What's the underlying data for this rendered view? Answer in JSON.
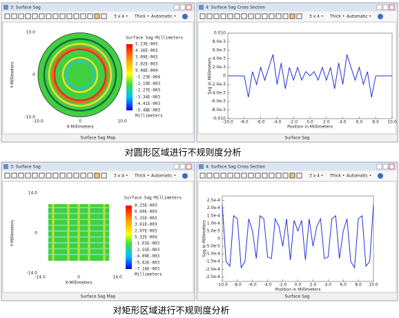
{
  "windows": [
    {
      "title": "3: Surface Sag",
      "toolbar": [
        "3 x 4 •",
        "Thick •",
        "Automatic •"
      ],
      "footer": "Surface Sag Map"
    },
    {
      "title": "4: Surface Sag Cross Section",
      "toolbar": [
        "3 x 4 •",
        "Thick •",
        "Automatic •"
      ],
      "footer": "Surface Sag"
    },
    {
      "title": "3: Surface Sag",
      "toolbar": [
        "3 x 4 •",
        "Thick •",
        "Automatic •"
      ],
      "footer": "Surface Sag Map"
    },
    {
      "title": "4: Surface Sag Cross Section",
      "toolbar": [
        "3 x 4 •",
        "Thick •",
        "Automatic •"
      ],
      "footer": "Surface Sag"
    }
  ],
  "maps": [
    {
      "title": "Surface Sag-Millimeters",
      "legend": [
        "5.23E-003",
        "4.16E-003",
        "3.09E-003",
        "2.02E-003",
        "9.48E-004",
        "-1.23E-004",
        "-1.19E-003",
        "-2.27E-003",
        "-3.34E-003",
        "-4.41E-003",
        "-5.48E-003"
      ],
      "unit": "Millimeters",
      "ylabel": "Y-Millimeters",
      "xlabel": "X-Millimeters",
      "yticks": [
        "10.0",
        "0",
        "-10.0"
      ],
      "xticks": [
        "-10.0",
        "0",
        "10.0"
      ]
    },
    {
      "title": "Surface Sag-Millimeters",
      "legend": [
        "8.23E-003",
        "6.69E-003",
        "5.15E-003",
        "3.61E-003",
        "2.07E-003",
        "5.32E-004",
        "-1.01E-003",
        "-2.55E-003",
        "-4.09E-003",
        "-5.62E-003",
        "-7.16E-003"
      ],
      "unit": "Millimeters",
      "ylabel": "Y-Millimeters",
      "xlabel": "X-Millimeters",
      "yticks": [
        "14.0",
        "0",
        "-14.0"
      ],
      "xticks": [
        "-14.0",
        "0",
        "14.0"
      ]
    }
  ],
  "chart_data": [
    {
      "type": "line",
      "ylabel": "Sag in Millimeters",
      "xlabel": "Position in Millimeters",
      "x": [
        -10,
        -9.5,
        -9,
        -8.5,
        -8,
        -7.5,
        -7,
        -6.5,
        -6,
        -5.5,
        -5,
        -4.5,
        -4,
        -3.5,
        -3,
        -2.5,
        -2,
        -1.5,
        -1,
        -0.5,
        0,
        0.5,
        1,
        1.5,
        2,
        2.5,
        3,
        3.5,
        4,
        4.5,
        5,
        5.5,
        6,
        6.5,
        7,
        7.5,
        8,
        8.5,
        9,
        9.5,
        10
      ],
      "series": [
        {
          "color": "#1f2fd6",
          "values": [
            0,
            0,
            0,
            0,
            0,
            -0.005,
            0.001,
            -0.002,
            0.002,
            -0.001,
            0.002,
            0.005,
            -0.002,
            0.003,
            -0.003,
            0.002,
            -0.001,
            0.002,
            -0.001,
            0.001,
            0,
            0.001,
            -0.001,
            0.002,
            -0.001,
            0.002,
            -0.003,
            0.003,
            -0.002,
            0.005,
            0.002,
            -0.001,
            0.002,
            -0.002,
            0.001,
            -0.005,
            0,
            0,
            0,
            0,
            0
          ]
        }
      ],
      "xlim": [
        -10,
        10
      ],
      "ylim": [
        -0.01,
        0.01
      ],
      "xticks": [
        {
          "value": -10,
          "label": "-10.0"
        },
        {
          "value": -8,
          "label": "-8.0"
        },
        {
          "value": -6,
          "label": "-6.0"
        },
        {
          "value": -4,
          "label": "-4.0"
        },
        {
          "value": -2,
          "label": "-2.0"
        },
        {
          "value": 0,
          "label": "0.0"
        },
        {
          "value": 2,
          "label": "2.0"
        },
        {
          "value": 4,
          "label": "4.0"
        },
        {
          "value": 6,
          "label": "6.0"
        },
        {
          "value": 8,
          "label": "8.0"
        },
        {
          "value": 10,
          "label": "10.0"
        }
      ],
      "yticks": [
        {
          "value": 0.01,
          "label": "0.010"
        },
        {
          "value": 0.008,
          "label": "8.0e-3"
        },
        {
          "value": 0.006,
          "label": "6.0e-3"
        },
        {
          "value": 0.004,
          "label": "4.0e-3"
        },
        {
          "value": 0.002,
          "label": "2.0e-3"
        },
        0,
        {
          "value": -0.002,
          "label": "-2.0e-3"
        },
        {
          "value": -0.004,
          "label": "-4.0e-3"
        },
        {
          "value": -0.006,
          "label": "-6.0e-3"
        },
        {
          "value": -0.008,
          "label": "-8.0e-3"
        },
        {
          "value": -0.01,
          "label": "-0.010"
        }
      ]
    },
    {
      "type": "line",
      "ylabel": "Sag in Millimeters",
      "xlabel": "Position in Millimeters",
      "x": [
        -10,
        -9.5,
        -9,
        -8.5,
        -8,
        -7.5,
        -7,
        -6.5,
        -6,
        -5.5,
        -5,
        -4.5,
        -4,
        -3.5,
        -3,
        -2.5,
        -2,
        -1.5,
        -1,
        -0.5,
        0,
        0.5,
        1,
        1.5,
        2,
        2.5,
        3,
        3.5,
        4,
        4.5,
        5,
        5.5,
        6,
        6.5,
        7,
        7.5,
        8,
        8.5,
        9,
        9.5,
        10
      ],
      "series": [
        {
          "color": "#1f2fd6",
          "values": [
            0.00022,
            -0.00015,
            -0.00018,
            0.00015,
            0.00013,
            -0.00019,
            -0.00015,
            0.00013,
            5e-05,
            -0.00013,
            0.00015,
            0.00013,
            -0.00012,
            -0.00013,
            0.00013,
            8e-05,
            -5e-05,
            0.00013,
            -0.00014,
            0.00012,
            5e-05,
            0.00012,
            -0.00014,
            0.00013,
            -5e-05,
            8e-05,
            0.00013,
            -0.00013,
            -0.00012,
            0.00013,
            0.00015,
            -0.00013,
            5e-05,
            0.00013,
            -0.00015,
            -0.00019,
            0.00013,
            0.00015,
            -0.00018,
            -0.00015,
            0.00022
          ]
        }
      ],
      "xlim": [
        -10,
        10
      ],
      "ylim": [
        -0.00028,
        0.00028
      ],
      "xticks": [
        {
          "value": -10,
          "label": "-10.0"
        },
        {
          "value": -8,
          "label": "-8.0"
        },
        {
          "value": -6,
          "label": "-6.0"
        },
        {
          "value": -4,
          "label": "-4.0"
        },
        {
          "value": -2,
          "label": "-2.0"
        },
        {
          "value": 0,
          "label": "0.0"
        },
        {
          "value": 2,
          "label": "2.0"
        },
        {
          "value": 4,
          "label": "4.0"
        },
        {
          "value": 6,
          "label": "6.0"
        },
        {
          "value": 8,
          "label": "8.0"
        },
        {
          "value": 10,
          "label": "10.0"
        }
      ],
      "yticks": [
        {
          "value": 0.00025,
          "label": "2.5e-4"
        },
        {
          "value": 0.0002,
          "label": "2.0e-4"
        },
        {
          "value": 0.00015,
          "label": "1.5e-4"
        },
        {
          "value": 0.0001,
          "label": "1.0e-4"
        },
        {
          "value": 5e-05,
          "label": "5.0e-5"
        },
        0,
        {
          "value": -5e-05,
          "label": "-5.0e-5"
        },
        {
          "value": -0.0001,
          "label": "-1.0e-4"
        },
        {
          "value": -0.00015,
          "label": "-1.5e-4"
        },
        {
          "value": -0.0002,
          "label": "-2.0e-4"
        },
        {
          "value": -0.00025,
          "label": "-2.5e-4"
        }
      ]
    }
  ],
  "captions": [
    "对圆形区域进行不规则度分析",
    "对矩形区域进行不规则度分析"
  ]
}
